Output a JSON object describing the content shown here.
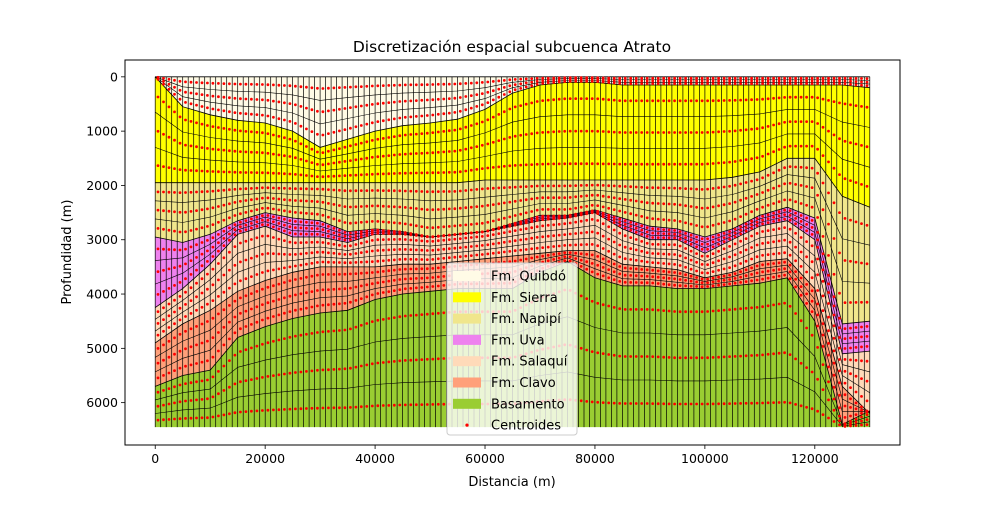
{
  "chart_data": {
    "type": "area",
    "title": "Discretización espacial subcuenca Atrato",
    "xlabel": "Distancia (m)",
    "ylabel": "Profundidad (m)",
    "xlim": [
      -5500,
      135500
    ],
    "ylim": [
      6780,
      -310
    ],
    "y_inverted": true,
    "xticks": [
      0,
      20000,
      40000,
      60000,
      80000,
      100000,
      120000
    ],
    "yticks": [
      0,
      1000,
      2000,
      3000,
      4000,
      5000,
      6000
    ],
    "x": [
      0,
      5000,
      10000,
      15000,
      20000,
      25000,
      30000,
      35000,
      40000,
      45000,
      50000,
      55000,
      60000,
      65000,
      70000,
      75000,
      80000,
      85000,
      90000,
      95000,
      100000,
      105000,
      110000,
      115000,
      120000,
      125000,
      130000
    ],
    "bottom": 6450,
    "surfaces": {
      "top_quibdo": [
        0,
        0,
        0,
        0,
        0,
        0,
        0,
        0,
        0,
        0,
        0,
        0,
        0,
        0,
        0,
        0,
        0,
        0,
        0,
        0,
        0,
        0,
        0,
        0,
        0,
        0,
        0
      ],
      "top_sierra": [
        0,
        550,
        700,
        800,
        850,
        1000,
        1300,
        1150,
        1000,
        900,
        850,
        780,
        600,
        300,
        150,
        100,
        100,
        150,
        150,
        150,
        150,
        150,
        150,
        150,
        150,
        150,
        200
      ],
      "top_napipi": [
        1950,
        1950,
        1950,
        1950,
        1950,
        1950,
        1950,
        1950,
        1950,
        1950,
        1950,
        1950,
        1900,
        1900,
        1900,
        1900,
        1900,
        1900,
        1900,
        1900,
        1900,
        1850,
        1750,
        1500,
        1500,
        2200,
        2400
      ],
      "top_uva": [
        2950,
        3050,
        2900,
        2650,
        2500,
        2600,
        2650,
        2850,
        2800,
        2850,
        2950,
        2900,
        2850,
        2700,
        2550,
        2550,
        2450,
        2600,
        2750,
        2800,
        2950,
        2800,
        2550,
        2400,
        2600,
        4550,
        4500
      ],
      "top_salaqui": [
        4250,
        3900,
        3450,
        2900,
        2750,
        2950,
        2950,
        3050,
        2900,
        2900,
        2950,
        2900,
        2850,
        2750,
        2650,
        2600,
        2500,
        2800,
        3000,
        3000,
        3250,
        3000,
        2750,
        2650,
        3000,
        5100,
        5050
      ],
      "top_clavo": [
        4900,
        4550,
        4300,
        3950,
        3750,
        3600,
        3500,
        3500,
        3500,
        3450,
        3450,
        3400,
        3350,
        3300,
        3250,
        3200,
        3200,
        3450,
        3500,
        3550,
        3700,
        3600,
        3400,
        3350,
        3900,
        5700,
        6200
      ],
      "top_basamento": [
        5700,
        5500,
        5400,
        4800,
        4600,
        4450,
        4350,
        4300,
        4100,
        4000,
        3950,
        3900,
        3900,
        3900,
        3600,
        3400,
        3700,
        3850,
        3850,
        3900,
        3900,
        3850,
        3800,
        3700,
        4500,
        6400,
        6150
      ]
    },
    "series": [
      {
        "name": "Fm. Quibdó",
        "color": "#fffbe6"
      },
      {
        "name": "Fm. Sierra",
        "color": "#ffff00"
      },
      {
        "name": "Fm. Napipí",
        "color": "#f0e68c"
      },
      {
        "name": "Fm. Uva",
        "color": "#ee82ee"
      },
      {
        "name": "Fm. Salaquí",
        "color": "#ffdab9"
      },
      {
        "name": "Fm. Clavo",
        "color": "#ffa07a"
      },
      {
        "name": "Basamento",
        "color": "#9acd32"
      }
    ],
    "centroids": {
      "name": "Centroides",
      "color": "#ff0000"
    },
    "grid": false,
    "legend_position": "lower center"
  }
}
